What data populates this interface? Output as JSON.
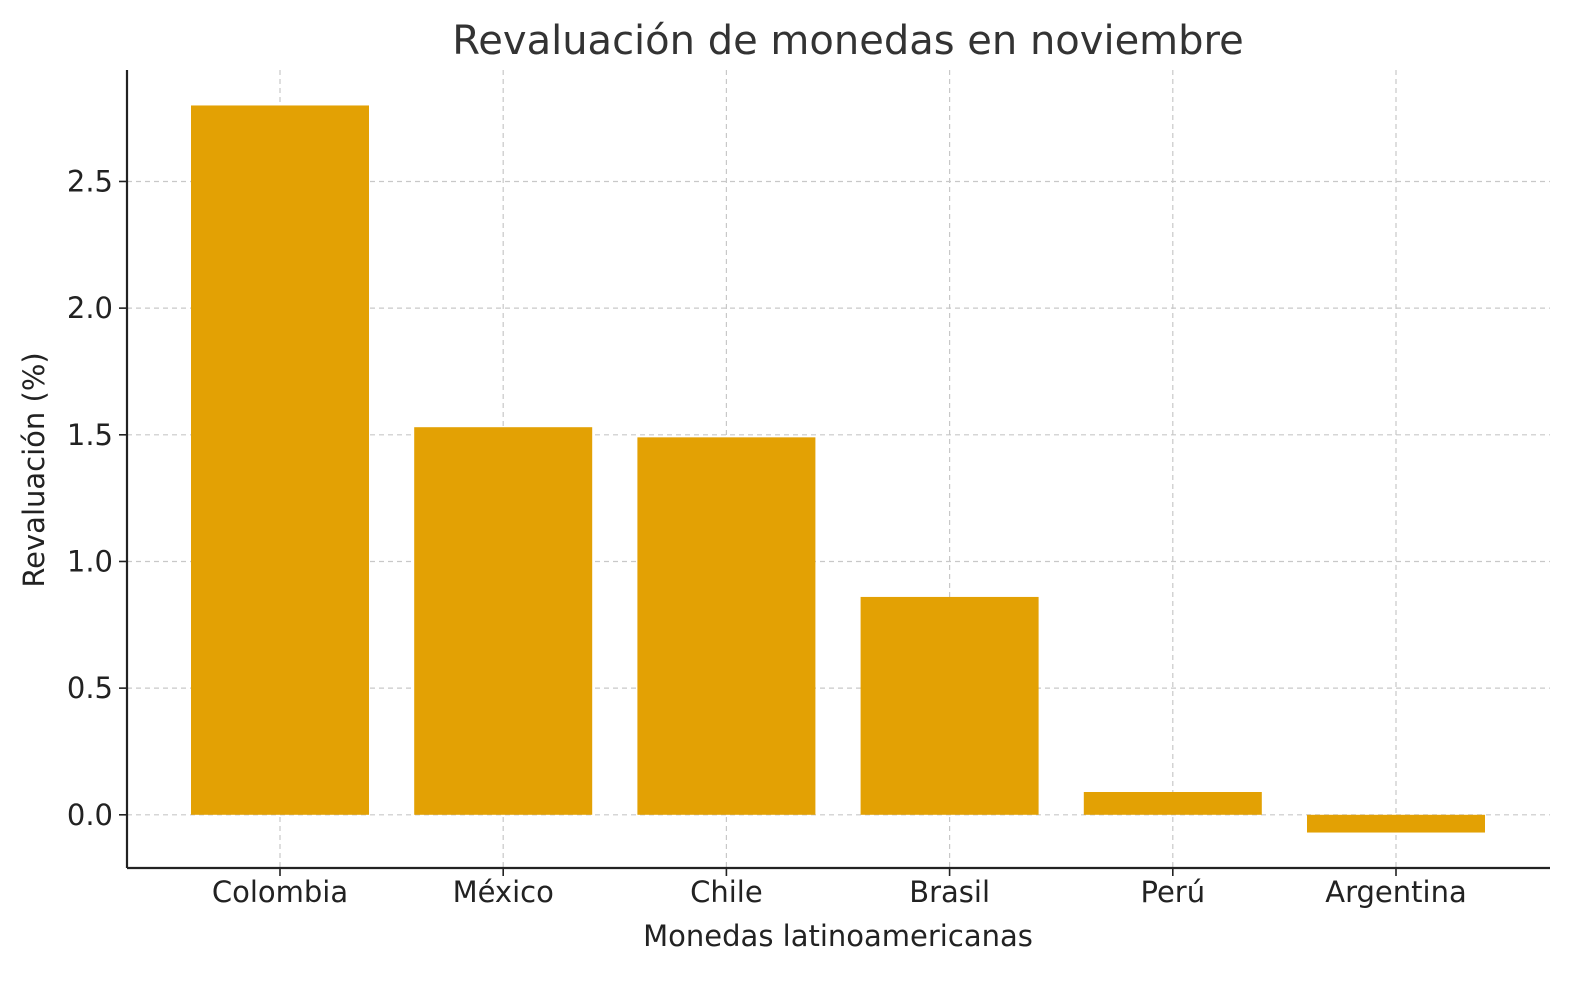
{
  "chart_data": {
    "type": "bar",
    "title": "Revaluación de monedas en noviembre",
    "xlabel": "Monedas latinoamericanas",
    "ylabel": "Revaluación (%)",
    "categories": [
      "Colombia",
      "México",
      "Chile",
      "Brasil",
      "Perú",
      "Argentina"
    ],
    "values": [
      2.8,
      1.53,
      1.49,
      0.86,
      0.09,
      -0.07
    ],
    "ylim": [
      -0.21,
      2.94
    ],
    "yticks": [
      0.0,
      0.5,
      1.0,
      1.5,
      2.0,
      2.5
    ],
    "ytick_labels": [
      "0.0",
      "0.5",
      "1.0",
      "1.5",
      "2.0",
      "2.5"
    ],
    "grid": true,
    "bar_color": "#E3A104"
  }
}
